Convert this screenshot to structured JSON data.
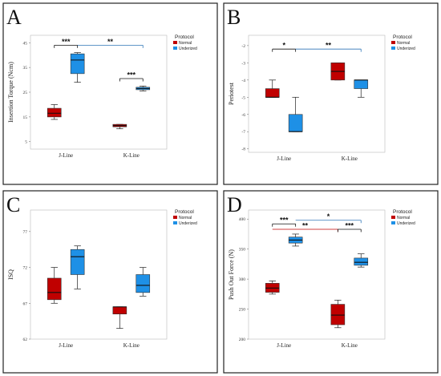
{
  "colors": {
    "normal": "#c00000",
    "underized": "#1e90e6",
    "sig_red": "#c00000",
    "sig_blue": "#2e75b6",
    "sig_black": "#111111"
  },
  "chart_data": [
    {
      "panel": "A",
      "type": "box",
      "ylabel": "Insertion Torque (Ncm)",
      "yticks": [
        5,
        15,
        25,
        35,
        45
      ],
      "ylim": [
        2,
        48
      ],
      "categories": [
        "J-Line",
        "K-Line"
      ],
      "legend": {
        "title": "Protocol",
        "entries": [
          "Normal",
          "Underized"
        ],
        "placement": "top-right"
      },
      "series": [
        {
          "name": "Normal",
          "boxes": [
            {
              "min": 14,
              "q1": 15,
              "median": 16.5,
              "q3": 18.5,
              "max": 20
            },
            {
              "min": 10.2,
              "q1": 11,
              "median": 11.5,
              "q3": 12,
              "max": 12
            }
          ]
        },
        {
          "name": "Underized",
          "boxes": [
            {
              "min": 29,
              "q1": 32.5,
              "median": 38,
              "q3": 40.5,
              "max": 41
            },
            {
              "min": 25.5,
              "q1": 26,
              "median": 26.5,
              "q3": 27,
              "max": 27.5
            }
          ]
        }
      ],
      "annotations": [
        {
          "label": "***",
          "color": "black",
          "y": 44,
          "from": 0,
          "to": 1,
          "ticks": [
            0,
            1
          ]
        },
        {
          "label": "**",
          "color": "blue",
          "y": 44,
          "from": 1,
          "to": 3,
          "ticks": [
            3
          ]
        },
        {
          "label": "***",
          "color": "black",
          "y": 30.5,
          "from": 2,
          "to": 3,
          "ticks": [
            2,
            3
          ]
        }
      ]
    },
    {
      "panel": "B",
      "type": "box",
      "ylabel": "Periotest",
      "yticks": [
        -8,
        -7,
        -6,
        -5,
        -4,
        -3,
        -2
      ],
      "ylim": [
        -8.2,
        -1.4
      ],
      "categories": [
        "J-Line",
        "K-Line"
      ],
      "legend": {
        "title": "Protocol",
        "entries": [
          "Normal",
          "Underized"
        ],
        "placement": "top-right"
      },
      "series": [
        {
          "name": "Normal",
          "boxes": [
            {
              "min": -5,
              "q1": -5,
              "median": -5,
              "q3": -4.5,
              "max": -4
            },
            {
              "min": -4,
              "q1": -4,
              "median": -3.5,
              "q3": -3,
              "max": -3
            }
          ]
        },
        {
          "name": "Underized",
          "boxes": [
            {
              "min": -7,
              "q1": -7,
              "median": -7,
              "q3": -6,
              "max": -5
            },
            {
              "min": -5,
              "q1": -4.5,
              "median": -4,
              "q3": -4,
              "max": -4
            }
          ]
        }
      ],
      "annotations": [
        {
          "label": "*",
          "color": "black",
          "y": -2.2,
          "from": 0,
          "to": 1,
          "ticks": [
            0,
            1
          ]
        },
        {
          "label": "**",
          "color": "blue",
          "y": -2.2,
          "from": 1,
          "to": 3,
          "ticks": [
            3
          ]
        }
      ]
    },
    {
      "panel": "C",
      "type": "box",
      "ylabel": "ISQ",
      "yticks": [
        62,
        67,
        72,
        77
      ],
      "ylim": [
        62,
        80
      ],
      "categories": [
        "J-Line",
        "K-Line"
      ],
      "legend": {
        "title": "Protocol",
        "entries": [
          "Normal",
          "Underized"
        ],
        "placement": "top-right"
      },
      "series": [
        {
          "name": "Normal",
          "boxes": [
            {
              "min": 67,
              "q1": 67.5,
              "median": 68.5,
              "q3": 70.5,
              "max": 72
            },
            {
              "min": 63.5,
              "q1": 65.5,
              "median": 66.5,
              "q3": 66.5,
              "max": 66.5
            }
          ]
        },
        {
          "name": "Underized",
          "boxes": [
            {
              "min": 69,
              "q1": 71,
              "median": 73.5,
              "q3": 74.5,
              "max": 75
            },
            {
              "min": 68,
              "q1": 68.5,
              "median": 69.5,
              "q3": 71,
              "max": 72
            }
          ]
        }
      ],
      "annotations": []
    },
    {
      "panel": "D",
      "type": "box",
      "ylabel": "Push Out Force (N)",
      "yticks": [
        200,
        250,
        300,
        350,
        400
      ],
      "ylim": [
        200,
        415
      ],
      "categories": [
        "J-Line",
        "K-Line"
      ],
      "legend": {
        "title": "Protocol",
        "entries": [
          "Normal",
          "Underized"
        ],
        "placement": "top-right"
      },
      "series": [
        {
          "name": "Normal",
          "boxes": [
            {
              "min": 275,
              "q1": 278,
              "median": 285,
              "q3": 293,
              "max": 297
            },
            {
              "min": 219,
              "q1": 224,
              "median": 240,
              "q3": 258,
              "max": 265
            }
          ]
        },
        {
          "name": "Underized",
          "boxes": [
            {
              "min": 355,
              "q1": 360,
              "median": 365,
              "q3": 370,
              "max": 375
            },
            {
              "min": 320,
              "q1": 323,
              "median": 328,
              "q3": 335,
              "max": 342
            }
          ]
        }
      ],
      "annotations": [
        {
          "label": "***",
          "color": "black",
          "y": 392,
          "from": 0,
          "to": 1,
          "ticks": [
            0,
            1
          ]
        },
        {
          "label": "*",
          "color": "blue",
          "y": 398,
          "from": 1,
          "to": 3,
          "ticks": [
            3
          ]
        },
        {
          "label": "**",
          "color": "red",
          "y": 383,
          "from": 0,
          "to": 2,
          "ticks": [
            2
          ]
        },
        {
          "label": "***",
          "color": "black",
          "y": 383,
          "from": 2,
          "to": 3,
          "ticks": [
            2,
            3
          ]
        }
      ]
    }
  ]
}
